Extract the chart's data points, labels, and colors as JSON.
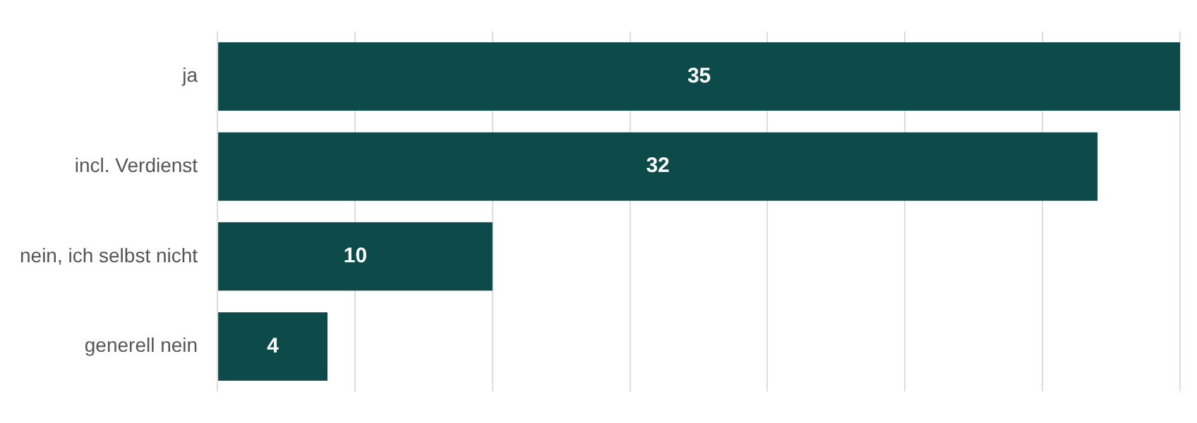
{
  "chart_data": {
    "type": "bar",
    "orientation": "horizontal",
    "categories": [
      "ja",
      "incl. Verdienst",
      "nein, ich selbst nicht",
      "generell nein"
    ],
    "values": [
      35,
      32,
      10,
      4
    ],
    "color": "#0d4a4a",
    "data_labels": true,
    "grid": "x",
    "tick_labels": "y",
    "xlim": [
      0,
      35
    ],
    "xticks": [
      {
        "value": 0,
        "label": null
      },
      {
        "value": 5,
        "label": null
      },
      {
        "value": 10,
        "label": null
      },
      {
        "value": 15,
        "label": null
      },
      {
        "value": 20,
        "label": null
      },
      {
        "value": 25,
        "label": null
      },
      {
        "value": 30,
        "label": null
      },
      {
        "value": 35,
        "label": null
      }
    ]
  }
}
